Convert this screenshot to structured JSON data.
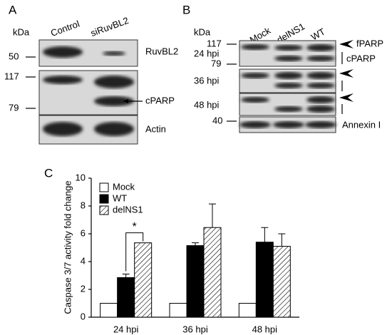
{
  "panel_a": {
    "letter": "A",
    "unit": "kDa",
    "lanes": [
      "Control",
      "siRuvBL2"
    ],
    "markers": [
      "50",
      "117",
      "79"
    ],
    "labels": [
      "RuvBL2",
      "cPARP",
      "Actin"
    ]
  },
  "panel_b": {
    "letter": "B",
    "unit": "kDa",
    "lanes": [
      "Mock",
      "delNS1",
      "WT"
    ],
    "markers": [
      "117",
      "79",
      "40"
    ],
    "times": [
      "24 hpi",
      "36 hpi",
      "48 hpi"
    ],
    "labels": [
      "fPARP",
      "cPARP",
      "Annexin I"
    ]
  },
  "chart_data": {
    "type": "bar",
    "letter": "C",
    "y_label": "Caspase 3/7 activity fold change",
    "categories": [
      "24 hpi",
      "36 hpi",
      "48 hpi"
    ],
    "series": [
      {
        "name": "Mock",
        "color": "#ffffff",
        "values": [
          1,
          1,
          1
        ],
        "errors": [
          null,
          null,
          null
        ]
      },
      {
        "name": "WT",
        "color": "#000000",
        "values": [
          2.85,
          5.15,
          5.4
        ],
        "errors": [
          0.25,
          0.2,
          1.05
        ]
      },
      {
        "name": "delNS1",
        "color": "#000000",
        "pattern": "hatch",
        "values": [
          5.35,
          6.45,
          5.1
        ],
        "errors": [
          null,
          1.7,
          0.9
        ]
      }
    ],
    "annotations": [
      "*"
    ],
    "ylim": [
      0,
      10
    ],
    "yticks": [
      0,
      2,
      4,
      6,
      8,
      10
    ],
    "grid": false,
    "legend": "upper left"
  }
}
